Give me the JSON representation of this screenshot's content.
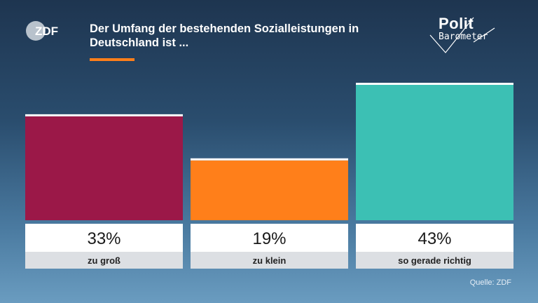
{
  "header": {
    "brand_left": "ZDF",
    "title": "Der Umfang der bestehenden Sozialleistungen in Deutschland ist ...",
    "brand_right_top": "Polit",
    "brand_right_bottom": "Barometer"
  },
  "source": "Quelle: ZDF",
  "chart_data": {
    "type": "bar",
    "title": "Der Umfang der bestehenden Sozialleistungen in Deutschland ist ...",
    "categories": [
      "zu groß",
      "zu klein",
      "so gerade richtig"
    ],
    "values": [
      33,
      19,
      43
    ],
    "value_labels": [
      "33%",
      "19%",
      "43%"
    ],
    "unit": "%",
    "colors": [
      "#9b1848",
      "#ff7f1a",
      "#3cc0b4"
    ],
    "ylim": [
      0,
      43
    ],
    "grid": false,
    "legend": "none"
  }
}
